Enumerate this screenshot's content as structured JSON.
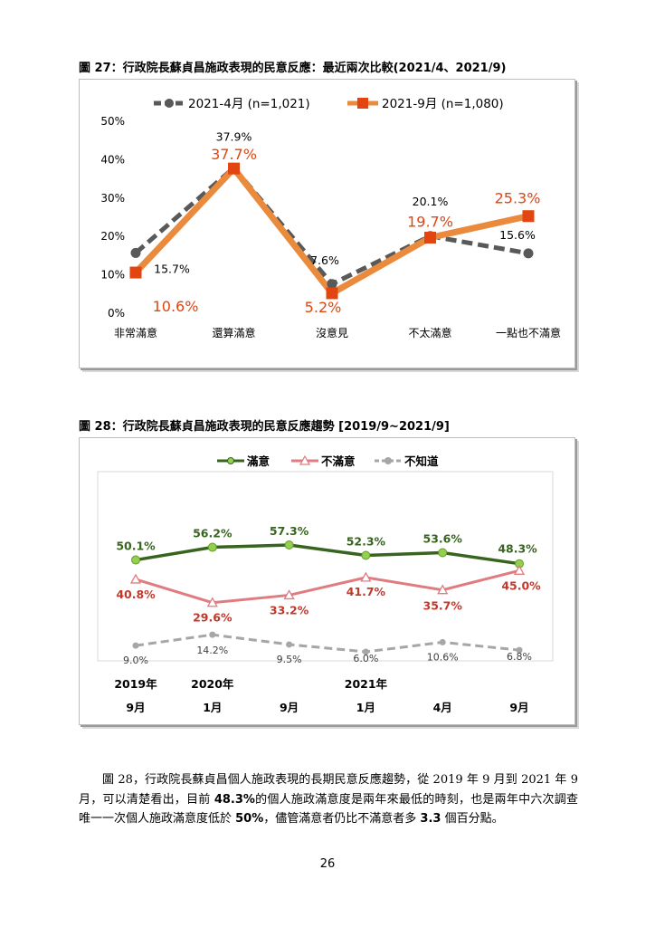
{
  "figure27": {
    "caption": "圖 27：行政院長蘇貞昌施政表現的民意反應：最近兩次比較(2021/4、2021/9)",
    "chart_data": {
      "type": "line",
      "categories": [
        "非常滿意",
        "還算滿意",
        "沒意見",
        "不太滿意",
        "一點也不滿意"
      ],
      "series": [
        {
          "name": "2021-4月 (n=1,021)",
          "values": [
            15.7,
            37.9,
            7.6,
            20.1,
            15.6
          ],
          "labels": [
            "15.7%",
            "37.9%",
            "7.6%",
            "20.1%",
            "15.6%"
          ],
          "color": "#595959",
          "style": "dashed"
        },
        {
          "name": "2021-9月 (n=1,080)",
          "values": [
            10.6,
            37.7,
            5.2,
            19.7,
            25.3
          ],
          "labels": [
            "10.6%",
            "37.7%",
            "5.2%",
            "19.7%",
            "25.3%"
          ],
          "color": "#e98a3c",
          "marker_color": "#e2450f",
          "style": "solid"
        }
      ],
      "ylim": [
        0,
        50
      ],
      "yticks": [
        "0%",
        "10%",
        "20%",
        "30%",
        "40%",
        "50%"
      ],
      "grid": false,
      "legend": "top"
    }
  },
  "figure28": {
    "caption": "圖 28：行政院長蘇貞昌施政表現的民意反應趨勢 [2019/9~2021/9]",
    "chart_data": {
      "type": "line",
      "x_years": [
        "2019年",
        "2020年",
        "",
        "2021年",
        "",
        ""
      ],
      "x_months": [
        "9月",
        "1月",
        "9月",
        "1月",
        "4月",
        "9月"
      ],
      "series": [
        {
          "name": "滿意",
          "values": [
            50.1,
            56.2,
            57.3,
            52.3,
            53.6,
            48.3
          ],
          "labels": [
            "50.1%",
            "56.2%",
            "57.3%",
            "52.3%",
            "53.6%",
            "48.3%"
          ],
          "color": "#37641f",
          "marker": "circle",
          "marker_color": "#92d050",
          "style": "solid"
        },
        {
          "name": "不滿意",
          "values": [
            40.8,
            29.6,
            33.2,
            41.7,
            35.7,
            45.0
          ],
          "labels": [
            "40.8%",
            "29.6%",
            "33.2%",
            "41.7%",
            "35.7%",
            "45.0%"
          ],
          "color": "#e07b80",
          "marker": "triangle",
          "label_color": "#c0392b",
          "style": "solid"
        },
        {
          "name": "不知道",
          "values": [
            9.0,
            14.2,
            9.5,
            6.0,
            10.6,
            6.8
          ],
          "labels": [
            "9.0%",
            "14.2%",
            "9.5%",
            "6.0%",
            "10.6%",
            "6.8%"
          ],
          "color": "#a6a6a6",
          "marker": "circle",
          "label_color": "#404040",
          "style": "dashed"
        }
      ],
      "legend": "top"
    }
  },
  "paragraph": {
    "t1": "圖 28，行政院長蘇貞昌個人施政表現的長期民意反應趨勢，從 2019 年 9 月到 2021 年 9 月，可以清楚看出，目前 ",
    "t2": "48.3%",
    "t3": "的個人施政滿意度是兩年來最低的時刻，也是兩年中六次調查唯一一次個人施政滿意度低於 ",
    "t4": "50%",
    "t5": "，儘管滿意者仍比不滿意者多 ",
    "t6": "3.3",
    "t7": " 個百分點。"
  },
  "page_number": "26"
}
